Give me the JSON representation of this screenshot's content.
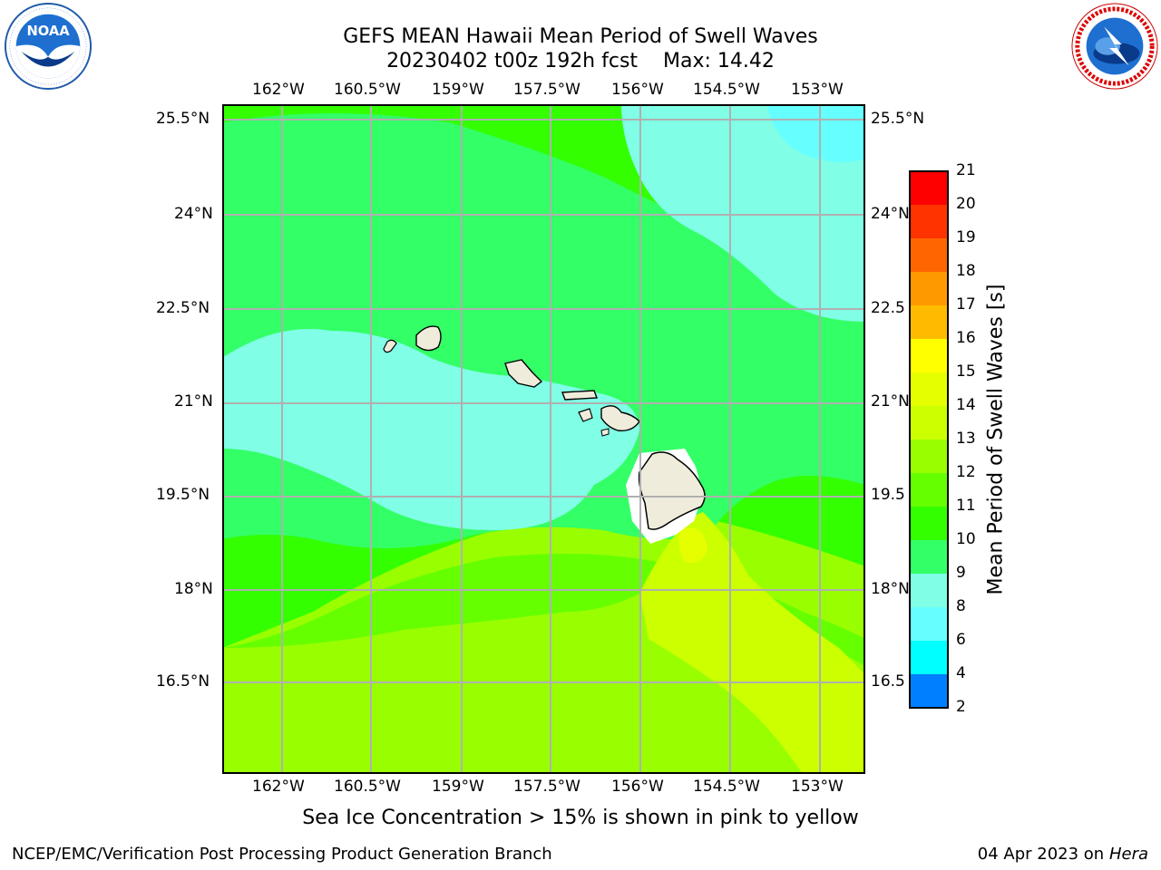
{
  "header": {
    "title_line1": "GEFS MEAN Hawaii Mean Period of Swell Waves",
    "title_date": "20230402 t00z 192h fcst",
    "title_max": "Max: 14.42"
  },
  "logos": {
    "left": {
      "name": "noaa-logo",
      "text": "NOAA",
      "ring_text": "NATIONAL OCEANIC AND ATMOSPHERIC ADMINISTRATION · U.S. DEPARTMENT OF COMMERCE"
    },
    "right": {
      "name": "nws-logo",
      "ring_text": "NATIONAL WEATHER SERVICE"
    }
  },
  "map": {
    "lon_ticks": [
      "162°W",
      "160.5°W",
      "159°W",
      "157.5°W",
      "156°W",
      "154.5°W",
      "153°W"
    ],
    "lat_ticks": [
      "25.5°N",
      "24°N",
      "22.5°N",
      "21°N",
      "19.5°N",
      "18°N",
      "16.5°N"
    ],
    "lat_ticks_right": [
      "25.5°N",
      "24°N",
      "22.5",
      "21°N",
      "19.5",
      "18°N",
      "16.5"
    ],
    "extent": {
      "lon": [
        -163,
        -152.6
      ],
      "lat": [
        15.0,
        25.75
      ]
    }
  },
  "colorbar": {
    "label": "Mean Period of Swell Waves [s]",
    "ticks": [
      "21",
      "20",
      "19",
      "18",
      "17",
      "16",
      "15",
      "14",
      "13",
      "12",
      "11",
      "10",
      "9",
      "8",
      "6",
      "4",
      "2"
    ],
    "colors": [
      "#ff0000",
      "#ff3300",
      "#ff6600",
      "#ff9900",
      "#ffbb00",
      "#ffff00",
      "#e6ff00",
      "#ccff00",
      "#99ff00",
      "#66ff00",
      "#33ff00",
      "#33ff66",
      "#80ffe6",
      "#66ffff",
      "#00ffff",
      "#0080ff",
      "#0000ff"
    ]
  },
  "field_colors": {
    "c8": "#66ffff",
    "c9": "#80ffe6",
    "c10": "#33ff66",
    "c11": "#33ff00",
    "c12": "#66ff00",
    "c13": "#99ff00",
    "c14": "#ccff00",
    "c15": "#e6ff00",
    "land": "#f0ecdc"
  },
  "footer": {
    "caption": "Sea Ice Concentration > 15% is shown in pink to yellow",
    "left": "NCEP/EMC/Verification Post Processing Product Generation Branch",
    "date": "04 Apr 2023 on",
    "machine": "Hera"
  }
}
